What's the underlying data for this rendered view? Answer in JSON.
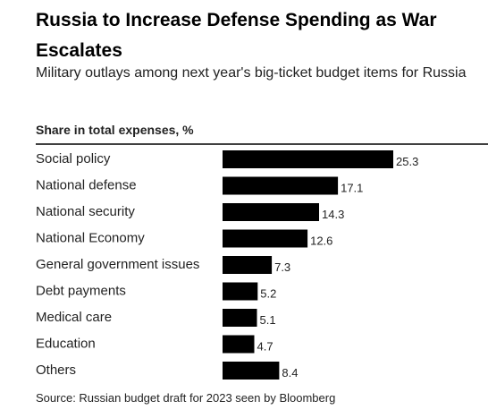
{
  "title": "Russia to Increase Defense Spending as War Escalates",
  "subtitle": "Military outlays among next year's big-ticket budget items for Russia",
  "source": "Source: Russian budget draft for 2023 seen by Bloomberg",
  "chart_data": {
    "type": "bar",
    "orientation": "horizontal",
    "header": "Share in total expenses, %",
    "categories": [
      "Social policy",
      "National defense",
      "National security",
      "National Economy",
      "General government issues",
      "Debt payments",
      "Medical care",
      "Education",
      "Others"
    ],
    "values": [
      25.3,
      17.1,
      14.3,
      12.6,
      7.3,
      5.2,
      5.1,
      4.7,
      8.4
    ],
    "value_labels": [
      "25.3",
      "17.1",
      "14.3",
      "12.6",
      "7.3",
      "5.2",
      "5.1",
      "4.7",
      "8.4"
    ],
    "bar_color": "#000000",
    "grid": false,
    "legend": "none"
  }
}
